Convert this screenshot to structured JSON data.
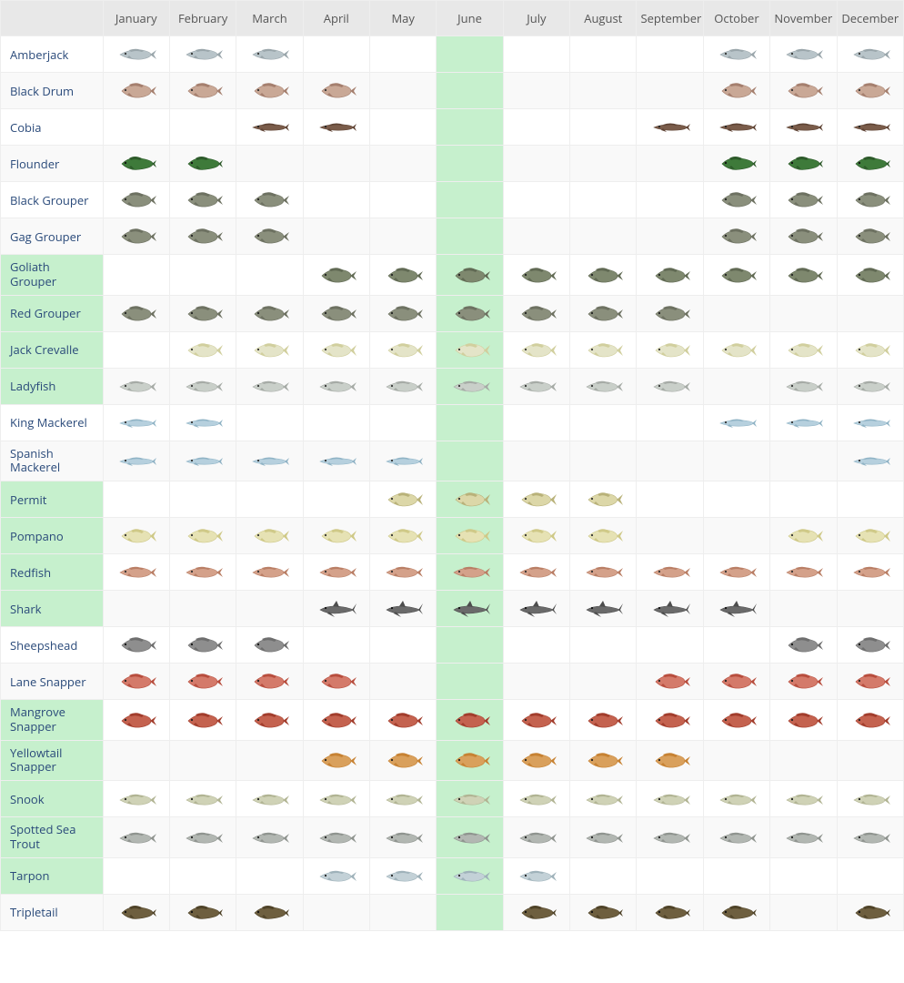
{
  "table": {
    "type": "table",
    "months": [
      "January",
      "February",
      "March",
      "April",
      "May",
      "June",
      "July",
      "August",
      "September",
      "October",
      "November",
      "December"
    ],
    "highlight_month_index": 5,
    "highlight_color": "#c6f0cd",
    "header_bg": "#e8e8e8",
    "row_stripe_even": "#f9f9f9",
    "row_stripe_odd": "#ffffff",
    "border_color": "#eeeeee",
    "link_color": "#2a4a7a",
    "font_family": "Open Sans, Segoe UI, Arial, sans-serif",
    "font_size_pt": 10,
    "fish": [
      {
        "name": "Amberjack",
        "hl": false,
        "color_body": "#b8c4c9",
        "color_fin": "#9aa6ab",
        "color_eye": "#333",
        "shape": "slim",
        "months": [
          1,
          1,
          1,
          0,
          0,
          0,
          0,
          0,
          0,
          1,
          1,
          1
        ]
      },
      {
        "name": "Black Drum",
        "hl": false,
        "color_body": "#c9a896",
        "color_fin": "#a57f6e",
        "color_eye": "#333",
        "shape": "deep",
        "months": [
          1,
          1,
          1,
          1,
          0,
          0,
          0,
          0,
          0,
          1,
          1,
          1
        ]
      },
      {
        "name": "Cobia",
        "hl": false,
        "color_body": "#7a5c4a",
        "color_fin": "#5e4334",
        "color_eye": "#222",
        "shape": "long",
        "months": [
          0,
          0,
          1,
          1,
          0,
          0,
          0,
          0,
          1,
          1,
          1,
          1
        ]
      },
      {
        "name": "Flounder",
        "hl": false,
        "color_body": "#3e7a3a",
        "color_fin": "#2d5a2a",
        "color_eye": "#111",
        "shape": "flat",
        "months": [
          1,
          1,
          0,
          0,
          0,
          0,
          0,
          0,
          0,
          1,
          1,
          1
        ]
      },
      {
        "name": "Black Grouper",
        "hl": false,
        "color_body": "#8a8f7c",
        "color_fin": "#6d7161",
        "color_eye": "#222",
        "shape": "deep",
        "months": [
          1,
          1,
          1,
          0,
          0,
          0,
          0,
          0,
          0,
          1,
          1,
          1
        ]
      },
      {
        "name": "Gag Grouper",
        "hl": false,
        "color_body": "#8a8f7c",
        "color_fin": "#6d7161",
        "color_eye": "#222",
        "shape": "deep",
        "months": [
          1,
          1,
          1,
          0,
          0,
          0,
          0,
          0,
          0,
          1,
          1,
          1
        ]
      },
      {
        "name": "Goliath Grouper",
        "hl": true,
        "color_body": "#7e886e",
        "color_fin": "#616a54",
        "color_eye": "#222",
        "shape": "deep",
        "months": [
          0,
          0,
          0,
          1,
          1,
          1,
          1,
          1,
          1,
          1,
          1,
          1
        ]
      },
      {
        "name": "Red Grouper",
        "hl": true,
        "color_body": "#8a8f7c",
        "color_fin": "#6d7161",
        "color_eye": "#222",
        "shape": "deep",
        "months": [
          1,
          1,
          1,
          1,
          1,
          1,
          1,
          1,
          1,
          0,
          0,
          0
        ]
      },
      {
        "name": "Jack Crevalle",
        "hl": true,
        "color_body": "#e4e4c8",
        "color_fin": "#d1cf9e",
        "color_eye": "#333",
        "shape": "jack",
        "months": [
          0,
          1,
          1,
          1,
          1,
          1,
          1,
          1,
          1,
          1,
          1,
          1
        ]
      },
      {
        "name": "Ladyfish",
        "hl": true,
        "color_body": "#c9cfc9",
        "color_fin": "#a6aba6",
        "color_eye": "#333",
        "shape": "slim",
        "months": [
          1,
          1,
          1,
          1,
          1,
          1,
          1,
          1,
          1,
          0,
          1,
          1
        ]
      },
      {
        "name": "King Mackerel",
        "hl": false,
        "color_body": "#b6d0de",
        "color_fin": "#8fb3c5",
        "color_eye": "#333",
        "shape": "long",
        "months": [
          1,
          1,
          0,
          0,
          0,
          0,
          0,
          0,
          0,
          1,
          1,
          1
        ]
      },
      {
        "name": "Spanish Mackerel",
        "hl": false,
        "color_body": "#b6d0de",
        "color_fin": "#8fb3c5",
        "color_eye": "#333",
        "shape": "long",
        "months": [
          1,
          1,
          1,
          1,
          1,
          0,
          0,
          0,
          0,
          0,
          0,
          1
        ]
      },
      {
        "name": "Permit",
        "hl": true,
        "color_body": "#dcd7a8",
        "color_fin": "#b9b27a",
        "color_eye": "#333",
        "shape": "jack",
        "months": [
          0,
          0,
          0,
          0,
          1,
          1,
          1,
          1,
          0,
          0,
          0,
          0
        ]
      },
      {
        "name": "Pompano",
        "hl": true,
        "color_body": "#e6e2b4",
        "color_fin": "#cfc988",
        "color_eye": "#333",
        "shape": "jack",
        "months": [
          1,
          1,
          1,
          1,
          1,
          1,
          1,
          1,
          0,
          0,
          1,
          1
        ]
      },
      {
        "name": "Redfish",
        "hl": true,
        "color_body": "#d4a18a",
        "color_fin": "#b97e65",
        "color_eye": "#333",
        "shape": "slim",
        "months": [
          1,
          1,
          1,
          1,
          1,
          1,
          1,
          1,
          1,
          1,
          1,
          1
        ]
      },
      {
        "name": "Shark",
        "hl": true,
        "color_body": "#6a6a6a",
        "color_fin": "#4d4d4d",
        "color_eye": "#111",
        "shape": "shark",
        "months": [
          0,
          0,
          0,
          1,
          1,
          1,
          1,
          1,
          1,
          1,
          0,
          0
        ]
      },
      {
        "name": "Sheepshead",
        "hl": false,
        "color_body": "#8e8e8e",
        "color_fin": "#6e6e6e",
        "color_eye": "#111",
        "shape": "deep",
        "months": [
          1,
          1,
          1,
          0,
          0,
          0,
          0,
          0,
          0,
          0,
          1,
          1
        ]
      },
      {
        "name": "Lane Snapper",
        "hl": false,
        "color_body": "#d47a6a",
        "color_fin": "#b84e3e",
        "color_eye": "#222",
        "shape": "deep",
        "months": [
          1,
          1,
          1,
          1,
          0,
          0,
          0,
          0,
          1,
          1,
          1,
          1
        ]
      },
      {
        "name": "Mangrove Snapper",
        "hl": true,
        "color_body": "#c4624f",
        "color_fin": "#a23d2c",
        "color_eye": "#222",
        "shape": "deep",
        "months": [
          1,
          1,
          1,
          1,
          1,
          1,
          1,
          1,
          1,
          1,
          1,
          1
        ]
      },
      {
        "name": "Yellowtail Snapper",
        "hl": true,
        "color_body": "#d9a05c",
        "color_fin": "#c78233",
        "color_eye": "#222",
        "shape": "deep",
        "months": [
          0,
          0,
          0,
          1,
          1,
          1,
          1,
          1,
          1,
          0,
          0,
          0
        ]
      },
      {
        "name": "Snook",
        "hl": true,
        "color_body": "#cfd2b6",
        "color_fin": "#b1b493",
        "color_eye": "#222",
        "shape": "slim",
        "months": [
          1,
          1,
          1,
          1,
          1,
          1,
          1,
          1,
          1,
          1,
          1,
          1
        ]
      },
      {
        "name": "Spotted Sea Trout",
        "hl": true,
        "color_body": "#b2b7b2",
        "color_fin": "#8f948f",
        "color_eye": "#222",
        "shape": "slim",
        "months": [
          1,
          1,
          1,
          1,
          1,
          1,
          1,
          1,
          1,
          1,
          1,
          1
        ]
      },
      {
        "name": "Tarpon",
        "hl": true,
        "color_body": "#c3d1d7",
        "color_fin": "#9fb2ba",
        "color_eye": "#222",
        "shape": "slim",
        "months": [
          0,
          0,
          0,
          1,
          1,
          1,
          1,
          0,
          0,
          0,
          0,
          0
        ]
      },
      {
        "name": "Tripletail",
        "hl": false,
        "color_body": "#6e5f3f",
        "color_fin": "#4f4328",
        "color_eye": "#111",
        "shape": "flat",
        "months": [
          1,
          1,
          1,
          0,
          0,
          0,
          1,
          1,
          1,
          1,
          0,
          1
        ]
      }
    ]
  }
}
